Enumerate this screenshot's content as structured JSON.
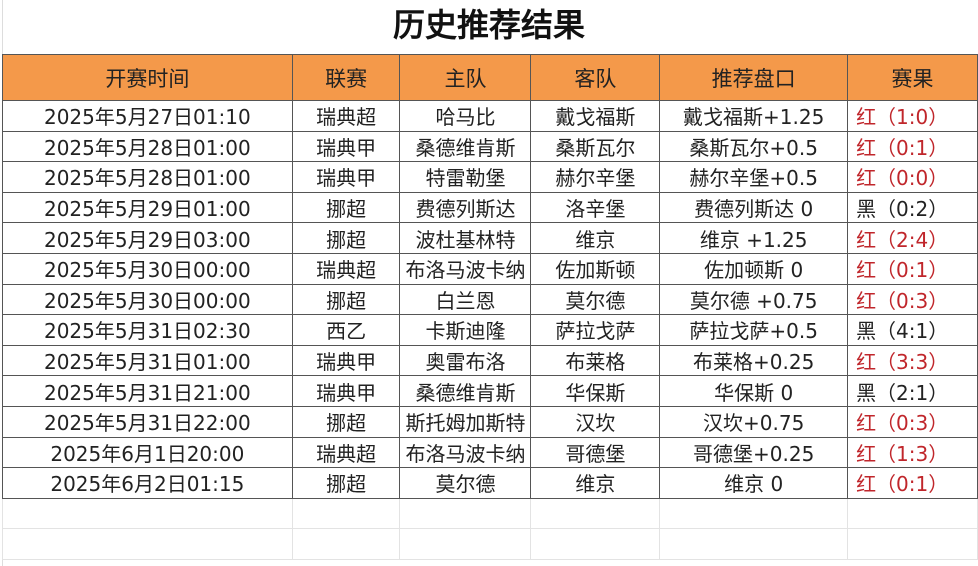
{
  "title": "历史推荐结果",
  "columns": [
    "开赛时间",
    "联赛",
    "主队",
    "客队",
    "推荐盘口",
    "赛果"
  ],
  "colors": {
    "header_bg": "#f4994a",
    "red_result": "#c0262b",
    "black_result": "#222222"
  },
  "rows": [
    {
      "time": "2025年5月27日01:10",
      "league": "瑞典超",
      "home": "哈马比",
      "away": "戴戈福斯",
      "pick": "戴戈福斯+1.25",
      "result": "红（1:0）",
      "color": "red"
    },
    {
      "time": "2025年5月28日01:00",
      "league": "瑞典甲",
      "home": "桑德维肯斯",
      "away": "桑斯瓦尔",
      "pick": "桑斯瓦尔+0.5",
      "result": "红（0:1）",
      "color": "red"
    },
    {
      "time": "2025年5月28日01:00",
      "league": "瑞典甲",
      "home": "特雷勒堡",
      "away": "赫尔辛堡",
      "pick": "赫尔辛堡+0.5",
      "result": "红（0:0）",
      "color": "red"
    },
    {
      "time": "2025年5月29日01:00",
      "league": "挪超",
      "home": "费德列斯达",
      "away": "洛辛堡",
      "pick": "费德列斯达 0",
      "result": "黑（0:2）",
      "color": "black"
    },
    {
      "time": "2025年5月29日03:00",
      "league": "挪超",
      "home": "波杜基林特",
      "away": "维京",
      "pick": "维京 +1.25",
      "result": "红（2:4）",
      "color": "red"
    },
    {
      "time": "2025年5月30日00:00",
      "league": "瑞典超",
      "home": "布洛马波卡纳",
      "away": "佐加斯顿",
      "pick": "佐加顿斯 0",
      "result": "红（0:1）",
      "color": "red"
    },
    {
      "time": "2025年5月30日00:00",
      "league": "挪超",
      "home": "白兰恩",
      "away": "莫尔德",
      "pick": "莫尔德 +0.75",
      "result": "红（0:3）",
      "color": "red"
    },
    {
      "time": "2025年5月31日02:30",
      "league": "西乙",
      "home": "卡斯迪隆",
      "away": "萨拉戈萨",
      "pick": "萨拉戈萨+0.5",
      "result": "黑（4:1）",
      "color": "black"
    },
    {
      "time": "2025年5月31日01:00",
      "league": "瑞典甲",
      "home": "奥雷布洛",
      "away": "布莱格",
      "pick": "布莱格+0.25",
      "result": "红（3:3）",
      "color": "red"
    },
    {
      "time": "2025年5月31日21:00",
      "league": "瑞典甲",
      "home": "桑德维肯斯",
      "away": "华保斯",
      "pick": "华保斯 0",
      "result": "黑（2:1）",
      "color": "black"
    },
    {
      "time": "2025年5月31日22:00",
      "league": "挪超",
      "home": "斯托姆加斯特",
      "away": "汉坎",
      "pick": "汉坎+0.75",
      "result": "红（0:3）",
      "color": "red"
    },
    {
      "time": "2025年6月1日20:00",
      "league": "瑞典超",
      "home": "布洛马波卡纳",
      "away": "哥德堡",
      "pick": "哥德堡+0.25",
      "result": "红（1:3）",
      "color": "red"
    },
    {
      "time": "2025年6月2日01:15",
      "league": "挪超",
      "home": "莫尔德",
      "away": "维京",
      "pick": "维京 0",
      "result": "红（0:1）",
      "color": "red"
    }
  ]
}
